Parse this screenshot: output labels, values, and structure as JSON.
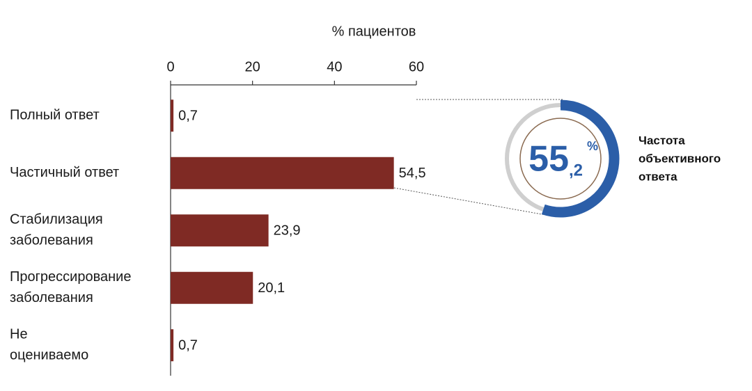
{
  "chart_data": [
    {
      "type": "hbar",
      "x_label": "% пациентов",
      "categories": [
        [
          "Полный ответ"
        ],
        [
          "Частичный ответ"
        ],
        [
          "Стабилизация",
          "заболевания"
        ],
        [
          "Прогрессирование",
          "заболевания"
        ],
        [
          "Не",
          "оцениваемо"
        ]
      ],
      "values": [
        0.7,
        54.5,
        23.9,
        20.1,
        0.7
      ],
      "value_labels": [
        "0,7",
        "54,5",
        "23,9",
        "20,1",
        "0,7"
      ],
      "color": "#7f2a24",
      "xlim": [
        0,
        60
      ],
      "xticks": [
        0,
        20,
        40,
        60
      ]
    },
    {
      "type": "donut",
      "values": [
        55.2
      ],
      "value_label_parts": [
        "55",
        ",2",
        "%"
      ],
      "ylim": [
        0,
        100
      ],
      "color": "#2b5ea8",
      "caption": [
        "Частота",
        "объективного",
        "ответа"
      ]
    }
  ]
}
